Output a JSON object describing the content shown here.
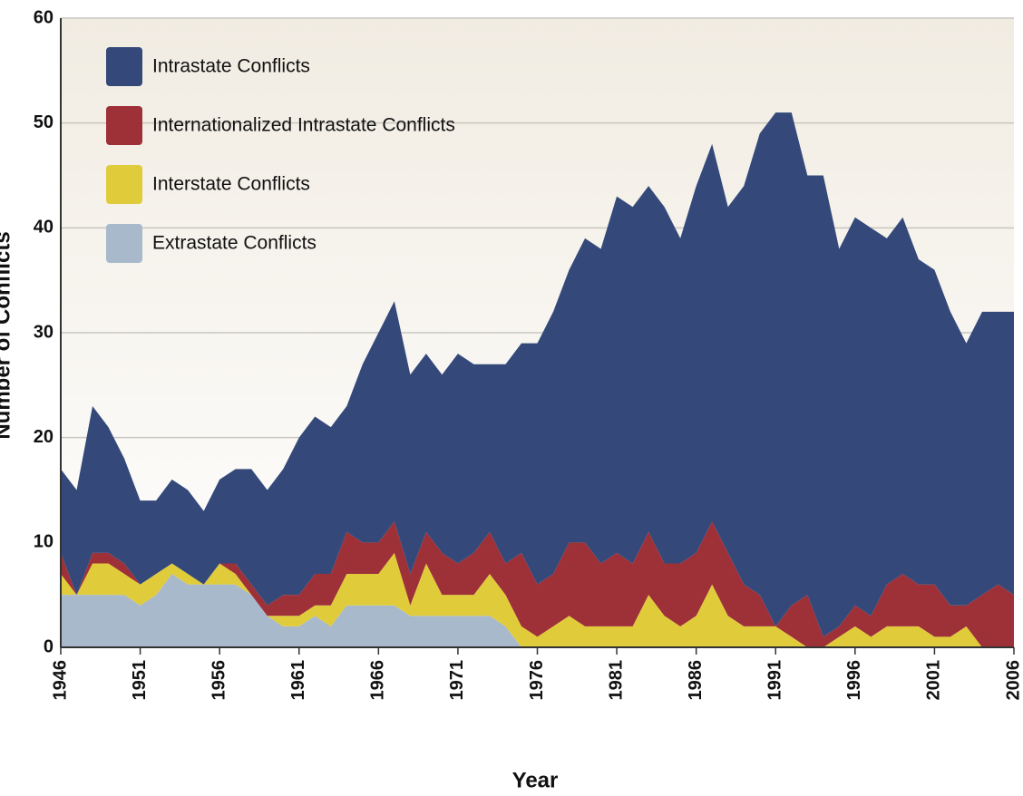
{
  "chart_data": {
    "type": "stacked_area",
    "x_label": "Year",
    "y_label": "Number of Conflicts",
    "x": [
      1946,
      1947,
      1948,
      1949,
      1950,
      1951,
      1952,
      1953,
      1954,
      1955,
      1956,
      1957,
      1958,
      1959,
      1960,
      1961,
      1962,
      1963,
      1964,
      1965,
      1966,
      1967,
      1968,
      1969,
      1970,
      1971,
      1972,
      1973,
      1974,
      1975,
      1976,
      1977,
      1978,
      1979,
      1980,
      1981,
      1982,
      1983,
      1984,
      1985,
      1986,
      1987,
      1988,
      1989,
      1990,
      1991,
      1992,
      1993,
      1994,
      1995,
      1996,
      1997,
      1998,
      1999,
      2000,
      2001,
      2002,
      2003,
      2004,
      2005,
      2006
    ],
    "series": [
      {
        "name": "Intrastate Conflicts",
        "color": "#34497a",
        "values": [
          8,
          10,
          14,
          12,
          10,
          8,
          7,
          8,
          8,
          7,
          8,
          9,
          11,
          11,
          12,
          15,
          15,
          14,
          12,
          17,
          20,
          21,
          19,
          17,
          17,
          20,
          18,
          16,
          19,
          20,
          23,
          25,
          26,
          29,
          30,
          34,
          34,
          33,
          34,
          31,
          35,
          36,
          33,
          38,
          44,
          49,
          47,
          40,
          44,
          36,
          37,
          37,
          33,
          34,
          31,
          30,
          28,
          25,
          27,
          26,
          27
        ]
      },
      {
        "name": "Internationalized Intrastate Conflicts",
        "color": "#9e3038",
        "values": [
          2,
          0,
          1,
          1,
          1,
          0,
          0,
          0,
          0,
          0,
          0,
          1,
          1,
          1,
          2,
          2,
          3,
          3,
          4,
          3,
          3,
          3,
          3,
          3,
          4,
          3,
          4,
          4,
          3,
          7,
          5,
          5,
          7,
          8,
          6,
          7,
          6,
          6,
          5,
          6,
          6,
          6,
          6,
          4,
          3,
          0,
          3,
          5,
          1,
          1,
          2,
          2,
          4,
          5,
          4,
          5,
          3,
          2,
          5,
          6,
          5
        ]
      },
      {
        "name": "Interstate Conflicts",
        "color": "#e0cc3a",
        "values": [
          2,
          0,
          3,
          3,
          2,
          2,
          2,
          1,
          1,
          0,
          2,
          1,
          0,
          0,
          1,
          1,
          1,
          2,
          3,
          3,
          3,
          5,
          1,
          5,
          2,
          2,
          2,
          4,
          3,
          2,
          1,
          2,
          3,
          2,
          2,
          2,
          2,
          5,
          3,
          2,
          3,
          6,
          3,
          2,
          2,
          2,
          1,
          0,
          0,
          1,
          2,
          1,
          2,
          2,
          2,
          1,
          1,
          2,
          0,
          0,
          0
        ]
      },
      {
        "name": "Extrastate Conflicts",
        "color": "#a9b9cc",
        "values": [
          5,
          5,
          5,
          5,
          5,
          4,
          5,
          7,
          6,
          6,
          6,
          6,
          5,
          3,
          2,
          2,
          3,
          2,
          4,
          4,
          4,
          4,
          3,
          3,
          3,
          3,
          3,
          3,
          2,
          0,
          0,
          0,
          0,
          0,
          0,
          0,
          0,
          0,
          0,
          0,
          0,
          0,
          0,
          0,
          0,
          0,
          0,
          0,
          0,
          0,
          0,
          0,
          0,
          0,
          0,
          0,
          0,
          0,
          0,
          0,
          0
        ]
      }
    ],
    "xlim": [
      1946,
      2006
    ],
    "xticks": [
      1946,
      1951,
      1956,
      1961,
      1966,
      1971,
      1976,
      1981,
      1986,
      1991,
      1996,
      2001,
      2006
    ],
    "ylim": [
      0,
      60
    ],
    "yticks": [
      0,
      10,
      20,
      30,
      40,
      50,
      60
    ],
    "grid": true,
    "legend": "upper left"
  }
}
